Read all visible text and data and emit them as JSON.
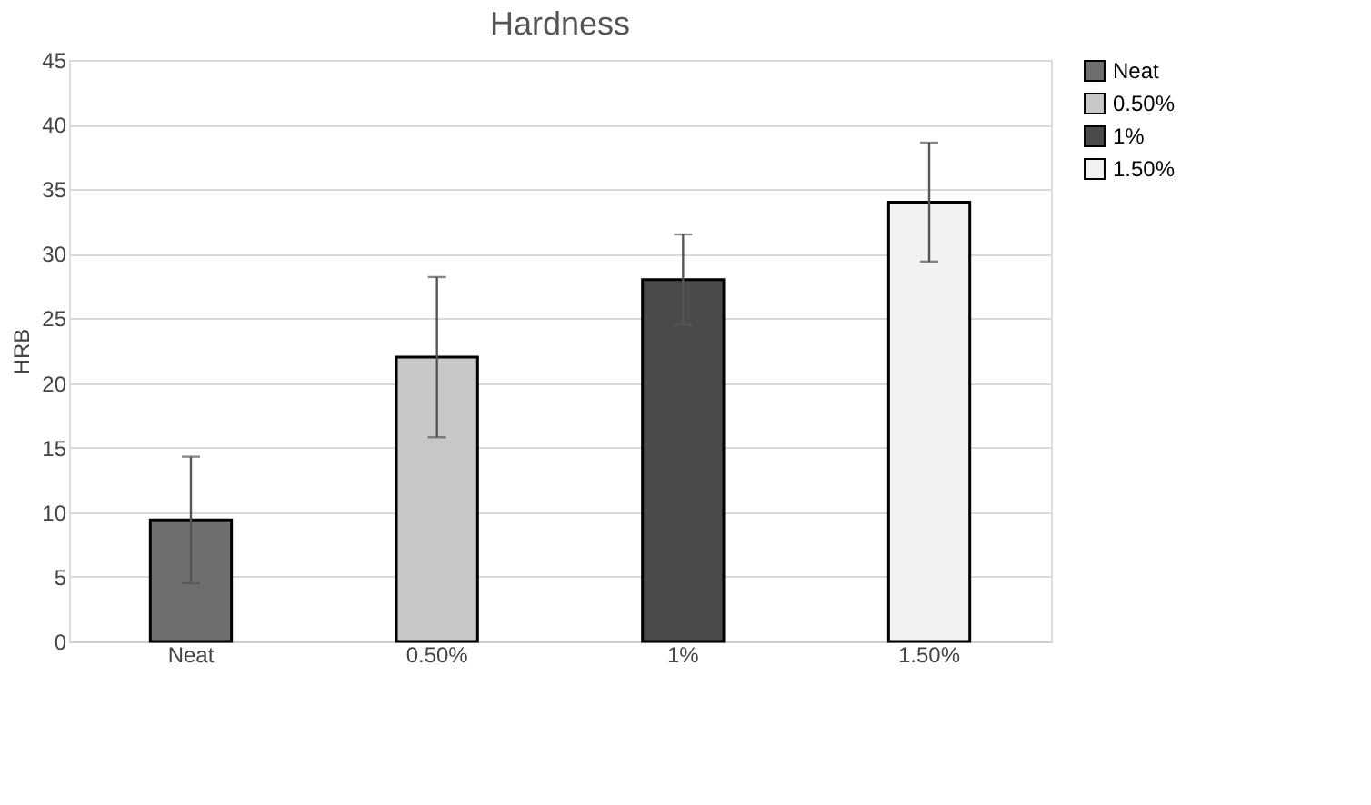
{
  "chart_data": {
    "type": "bar",
    "title": "Hardness",
    "ylabel": "HRB",
    "categories": [
      "Neat",
      "0.50%",
      "1%",
      "1.50%"
    ],
    "series": [
      {
        "name": "Neat",
        "color": "#6e6e6e",
        "values": [
          9.4,
          null,
          null,
          null
        ],
        "errors": [
          4.9,
          null,
          null,
          null
        ]
      },
      {
        "name": "0.50%",
        "color": "#c8c8c8",
        "values": [
          null,
          22,
          null,
          null
        ],
        "errors": [
          null,
          6.2,
          null,
          null
        ]
      },
      {
        "name": "1%",
        "color": "#4a4a4a",
        "values": [
          null,
          null,
          28,
          null
        ],
        "errors": [
          null,
          null,
          3.5,
          null
        ]
      },
      {
        "name": "1.50%",
        "color": "#f2f2f2",
        "values": [
          null,
          null,
          null,
          34
        ],
        "errors": [
          null,
          null,
          null,
          4.6
        ]
      }
    ],
    "ylim": [
      0,
      45
    ],
    "yticks": [
      0,
      5,
      10,
      15,
      20,
      25,
      30,
      35,
      40,
      45
    ],
    "grid": "y",
    "legend": "right"
  }
}
